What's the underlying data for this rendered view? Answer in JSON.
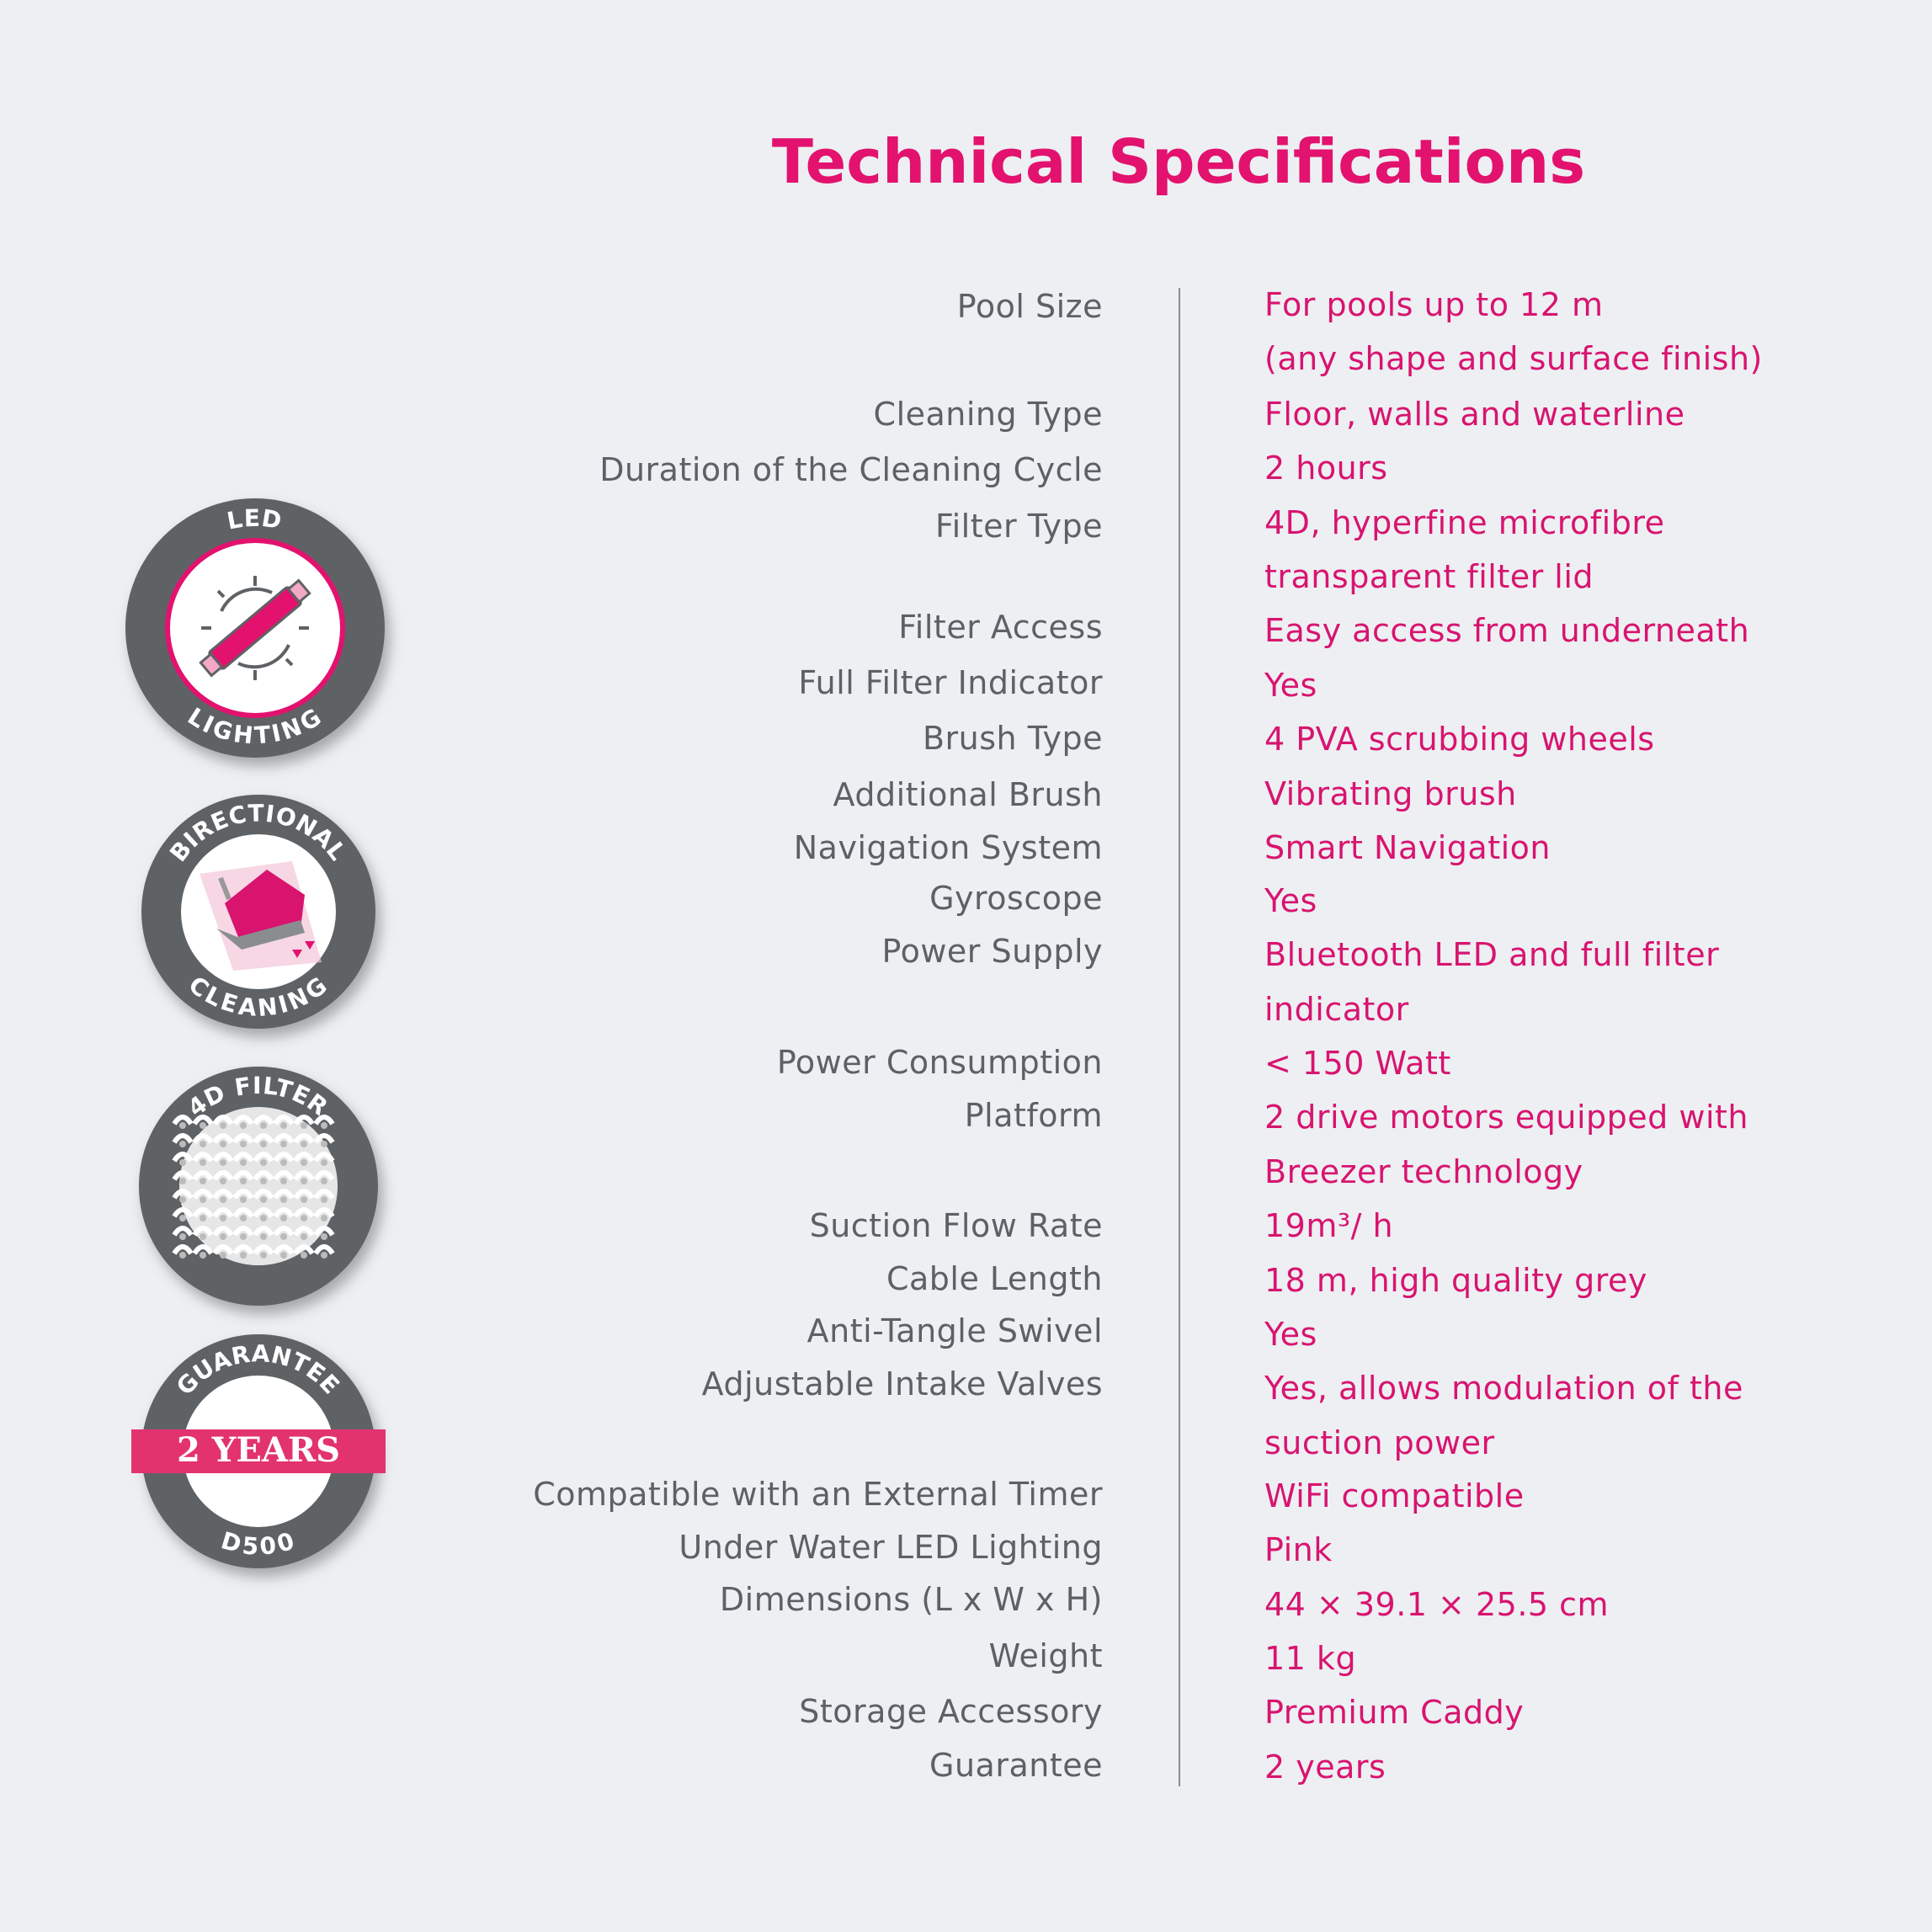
{
  "title": "Technical Specifications",
  "colors": {
    "accent": "#e2126e",
    "label": "#5d6064",
    "badge_ring": "#5f6265",
    "background": "#edeff3"
  },
  "specs": [
    {
      "label": "Pool Size",
      "value": [
        "For pools up to 12 m",
        "(any shape and surface finish)"
      ]
    },
    {
      "label": "Cleaning Type",
      "value": [
        "Floor, walls and waterline"
      ]
    },
    {
      "label": "Duration of the Cleaning Cycle",
      "value": [
        "2 hours"
      ]
    },
    {
      "label": "Filter Type",
      "value": [
        "4D, hyperfine microfibre",
        "transparent filter lid"
      ]
    },
    {
      "label": "Filter Access",
      "value": [
        "Easy access from underneath"
      ]
    },
    {
      "label": "Full Filter Indicator",
      "value": [
        "Yes"
      ]
    },
    {
      "label": "Brush Type",
      "value": [
        "4 PVA scrubbing wheels"
      ]
    },
    {
      "label": "Additional Brush",
      "value": [
        "Vibrating brush"
      ]
    },
    {
      "label": "Navigation System",
      "value": [
        "Smart Navigation"
      ]
    },
    {
      "label": "Gyroscope",
      "value": [
        "Yes"
      ]
    },
    {
      "label": "Power Supply",
      "value": [
        "Bluetooth LED and full filter",
        "indicator"
      ]
    },
    {
      "label": "Power Consumption",
      "value": [
        "< 150 Watt"
      ]
    },
    {
      "label": "Platform",
      "value": [
        "2 drive motors equipped with",
        "Breezer technology"
      ]
    },
    {
      "label": "Suction Flow Rate",
      "value": [
        "19m³/ h"
      ]
    },
    {
      "label": "Cable Length",
      "value": [
        "18 m, high quality grey"
      ]
    },
    {
      "label": "Anti-Tangle Swivel",
      "value": [
        "Yes"
      ]
    },
    {
      "label": "Adjustable Intake Valves",
      "value": [
        "Yes, allows modulation of the",
        "suction power"
      ]
    },
    {
      "label": "Compatible with an External Timer",
      "value": [
        "WiFi compatible"
      ]
    },
    {
      "label": "Under Water LED Lighting",
      "value": [
        "Pink"
      ]
    },
    {
      "label": "Dimensions (L x W x H)",
      "value": [
        "44 × 39.1 × 25.5 cm"
      ]
    },
    {
      "label": "Weight",
      "value": [
        "11 kg"
      ]
    },
    {
      "label": "Storage Accessory",
      "value": [
        "Premium Caddy"
      ]
    },
    {
      "label": "Guarantee",
      "value": [
        "2 years"
      ]
    }
  ],
  "badges": [
    {
      "top": "LED",
      "bottom": "LIGHTING",
      "icon": "led-tube-icon"
    },
    {
      "top": "BIRECTIONAL",
      "bottom": "CLEANING",
      "icon": "robot-cleaner-icon"
    },
    {
      "top": "4D FILTER",
      "bottom": "",
      "icon": "filter-mesh-icon"
    },
    {
      "top": "GUARANTEE",
      "bottom": "D500",
      "banner": "2 YEARS",
      "icon": "guarantee-icon"
    }
  ]
}
